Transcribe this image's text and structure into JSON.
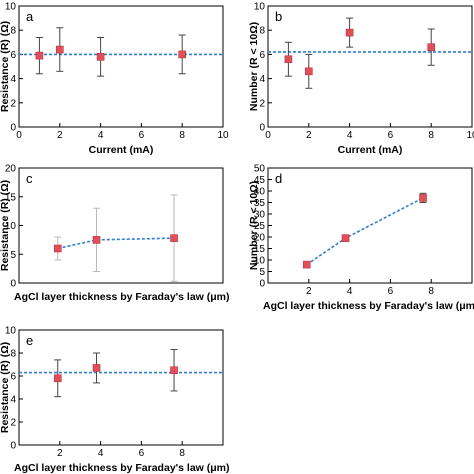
{
  "chart_data": [
    {
      "panel": "a",
      "type": "scatter",
      "xlabel": "Current (mA)",
      "ylabel": "Resistance (R) (Ω)",
      "xlim": [
        0,
        10
      ],
      "ylim": [
        0,
        10
      ],
      "xticks": [
        0,
        2,
        4,
        6,
        8,
        10
      ],
      "yticks": [
        0,
        2,
        4,
        6,
        8,
        10
      ],
      "x": [
        1,
        2,
        4,
        8
      ],
      "y": [
        5.9,
        6.4,
        5.8,
        6.0
      ],
      "err": [
        1.5,
        1.8,
        1.6,
        1.6
      ],
      "reference_line": 6.0,
      "series_color": "#e0505a",
      "line_color": "#2f7fd1"
    },
    {
      "panel": "b",
      "type": "scatter",
      "xlabel": "Current (mA)",
      "ylabel": "Number (R < 10Ω)",
      "xlim": [
        0,
        10
      ],
      "ylim": [
        0,
        10
      ],
      "xticks": [
        0,
        2,
        4,
        6,
        8,
        10
      ],
      "yticks": [
        0,
        2,
        4,
        6,
        8,
        10
      ],
      "x": [
        1,
        2,
        4,
        8
      ],
      "y": [
        5.6,
        4.6,
        7.8,
        6.6
      ],
      "err": [
        1.4,
        1.4,
        1.2,
        1.5
      ],
      "reference_line": 6.2,
      "series_color": "#e0505a",
      "line_color": "#2f7fd1"
    },
    {
      "panel": "c",
      "type": "line",
      "xlabel": "AgCl layer thickness by Faraday's law (μm)",
      "ylabel": "Resistance (R) (Ω)",
      "xlim": [
        0,
        10
      ],
      "ylim": [
        0,
        20
      ],
      "xticks": [],
      "yticks": [
        0,
        5,
        10,
        15,
        20
      ],
      "x": [
        1.9,
        3.8,
        7.6
      ],
      "y": [
        6.0,
        7.5,
        7.8
      ],
      "err": [
        2.0,
        5.5,
        7.5
      ],
      "series_color": "#e0505a",
      "line_color": "#2f7fd1"
    },
    {
      "panel": "d",
      "type": "line",
      "xlabel": "AgCl layer thickness by Faraday's law (μm)",
      "ylabel": "Number (R < 10Ω)",
      "xlim": [
        0,
        10
      ],
      "ylim": [
        0,
        50
      ],
      "xticks": [
        2,
        4,
        6,
        8
      ],
      "yticks": [
        0,
        5,
        10,
        15,
        20,
        25,
        30,
        35,
        40,
        45,
        50
      ],
      "x": [
        1.9,
        3.8,
        7.6
      ],
      "y": [
        8,
        19.5,
        37
      ],
      "err": [
        0.8,
        0.8,
        2.0
      ],
      "series_color": "#e0505a",
      "line_color": "#2f7fd1"
    },
    {
      "panel": "e",
      "type": "scatter",
      "xlabel": "AgCl layer thickness by Faraday's law (μm)",
      "ylabel": "Resistance (R) (Ω)",
      "xlim": [
        0,
        10
      ],
      "ylim": [
        0,
        10
      ],
      "xticks": [
        2,
        4,
        6,
        8
      ],
      "yticks": [
        0,
        2,
        4,
        6,
        8,
        10
      ],
      "x": [
        1.9,
        3.8,
        7.6
      ],
      "y": [
        5.8,
        6.7,
        6.5
      ],
      "err": [
        1.6,
        1.3,
        1.8
      ],
      "reference_line": 6.3,
      "series_color": "#e0505a",
      "line_color": "#2f7fd1"
    }
  ]
}
